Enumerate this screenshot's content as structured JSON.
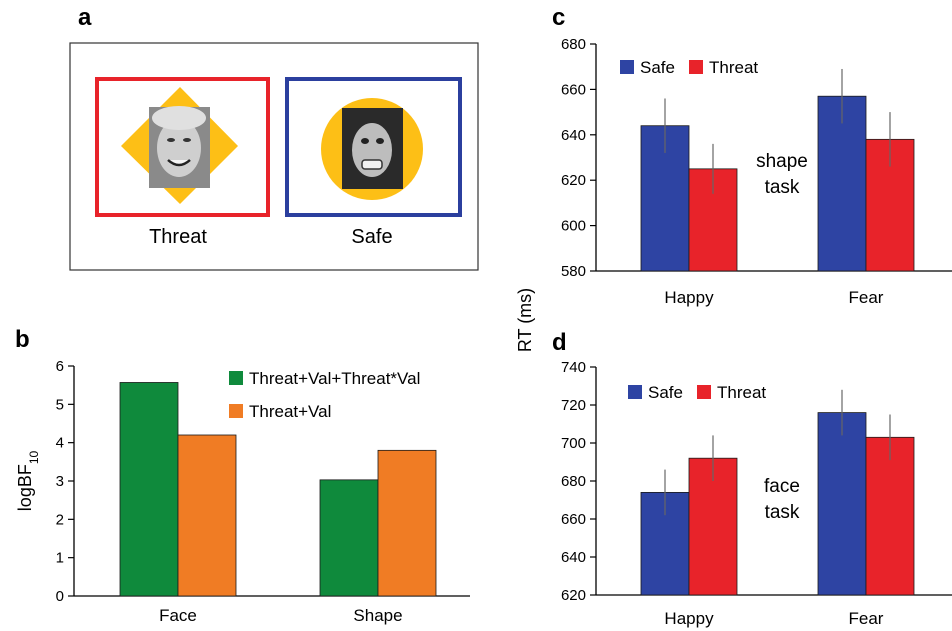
{
  "panel_a": {
    "letter": "a",
    "conditions": [
      {
        "label": "Threat",
        "frame_color": "#e8232a",
        "shape": "diamond"
      },
      {
        "label": "Safe",
        "frame_color": "#2b3f9e",
        "shape": "circle"
      }
    ],
    "shape_color": "#fdbf16"
  },
  "chart_data": [
    {
      "id": "b",
      "letter": "b",
      "type": "bar",
      "categories": [
        "Face",
        "Shape"
      ],
      "series": [
        {
          "name": "Threat+Val+Threat*Val",
          "values": [
            5.57,
            3.03
          ],
          "color": "#0f8a3c"
        },
        {
          "name": "Threat+Val",
          "values": [
            4.2,
            3.8
          ],
          "color": "#f07c24"
        }
      ],
      "ylabel": "logBF",
      "ylabel_sub": "10",
      "ylim": [
        0,
        6
      ],
      "yticks": [
        "0",
        "1",
        "2",
        "3",
        "4",
        "5",
        "6"
      ],
      "legend_position": "top-right",
      "grid": false
    },
    {
      "id": "c",
      "letter": "c",
      "type": "bar",
      "categories": [
        "Happy",
        "Fear"
      ],
      "series": [
        {
          "name": "Safe",
          "values": [
            644,
            657
          ],
          "errors": [
            12,
            12
          ],
          "color": "#2e44a3"
        },
        {
          "name": "Threat",
          "values": [
            625,
            638
          ],
          "errors": [
            11,
            12
          ],
          "color": "#e8232a"
        }
      ],
      "annotation": [
        "shape",
        "task"
      ],
      "ylim": [
        580,
        680
      ],
      "yticks": [
        "580",
        "600",
        "620",
        "640",
        "660",
        "680"
      ],
      "legend_position": "top-left",
      "grid": false
    },
    {
      "id": "d",
      "letter": "d",
      "type": "bar",
      "categories": [
        "Happy",
        "Fear"
      ],
      "series": [
        {
          "name": "Safe",
          "values": [
            674,
            716
          ],
          "errors": [
            12,
            12
          ],
          "color": "#2e44a3"
        },
        {
          "name": "Threat",
          "values": [
            692,
            703
          ],
          "errors": [
            12,
            12
          ],
          "color": "#e8232a"
        }
      ],
      "annotation": [
        "face",
        "task"
      ],
      "ylim": [
        620,
        740
      ],
      "yticks": [
        "620",
        "640",
        "660",
        "680",
        "700",
        "720",
        "740"
      ],
      "legend_position": "top-left",
      "grid": false
    }
  ],
  "shared_ylabel_cd": "RT (ms)"
}
